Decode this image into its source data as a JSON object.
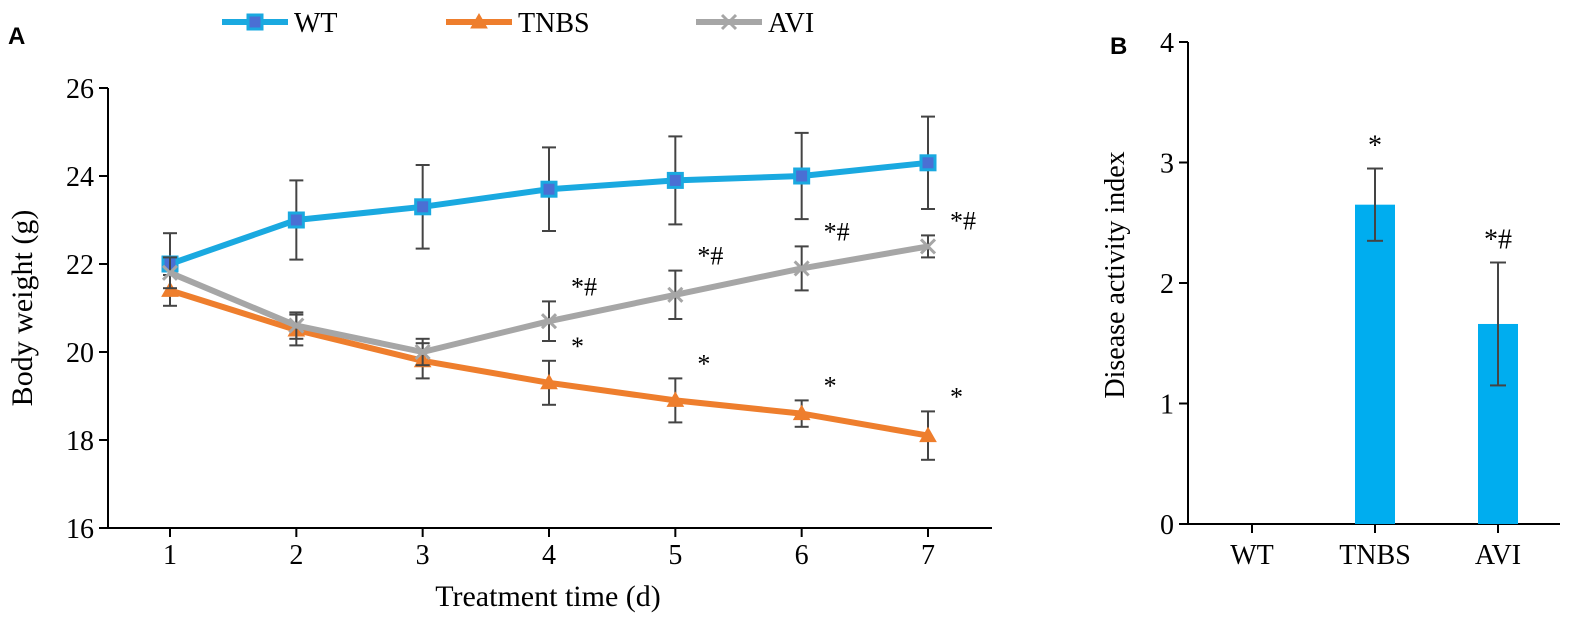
{
  "chart_data": [
    {
      "panel_label": "A",
      "type": "line",
      "xlabel": "Treatment time (d)",
      "ylabel": "Body weight (g)",
      "x": [
        1,
        2,
        3,
        4,
        5,
        6,
        7
      ],
      "xticks": [
        "1",
        "2",
        "3",
        "4",
        "5",
        "6",
        "7"
      ],
      "ylim": [
        16,
        26
      ],
      "yticks": [
        "16",
        "18",
        "20",
        "22",
        "24",
        "26"
      ],
      "grid": false,
      "legend_position": "top",
      "series": [
        {
          "name": "WT",
          "color": "#1aa9e0",
          "marker": "square",
          "values": [
            22.0,
            23.0,
            23.3,
            23.7,
            23.9,
            24.0,
            24.3
          ],
          "error": [
            0.7,
            0.9,
            0.95,
            0.95,
            1.0,
            0.98,
            1.05
          ],
          "annotations": [
            "",
            "",
            "",
            "",
            "",
            "",
            ""
          ]
        },
        {
          "name": "TNBS",
          "color": "#ee7e2d",
          "marker": "triangle",
          "values": [
            21.4,
            20.5,
            19.8,
            19.3,
            18.9,
            18.6,
            18.1
          ],
          "error": [
            0.35,
            0.35,
            0.4,
            0.5,
            0.5,
            0.3,
            0.55
          ],
          "annotations": [
            "",
            "",
            "",
            "*",
            "*",
            "*",
            "*"
          ]
        },
        {
          "name": "AVI",
          "color": "#a6a6a6",
          "marker": "x",
          "values": [
            21.8,
            20.6,
            20.0,
            20.7,
            21.3,
            21.9,
            22.4
          ],
          "error": [
            0.35,
            0.3,
            0.3,
            0.45,
            0.55,
            0.5,
            0.25
          ],
          "annotations": [
            "",
            "",
            "",
            "*#",
            "*#",
            "*#",
            "*#"
          ]
        }
      ]
    },
    {
      "panel_label": "B",
      "type": "bar",
      "ylabel": "Disease activity index",
      "categories": [
        "WT",
        "TNBS",
        "AVI"
      ],
      "values": [
        0,
        2.65,
        1.66
      ],
      "error": [
        0,
        0.3,
        0.51
      ],
      "annotations": [
        "",
        "*",
        "*#"
      ],
      "ylim": [
        0,
        4
      ],
      "yticks": [
        "0",
        "1",
        "2",
        "3",
        "4"
      ],
      "bar_color": "#00adef",
      "grid": false
    }
  ]
}
